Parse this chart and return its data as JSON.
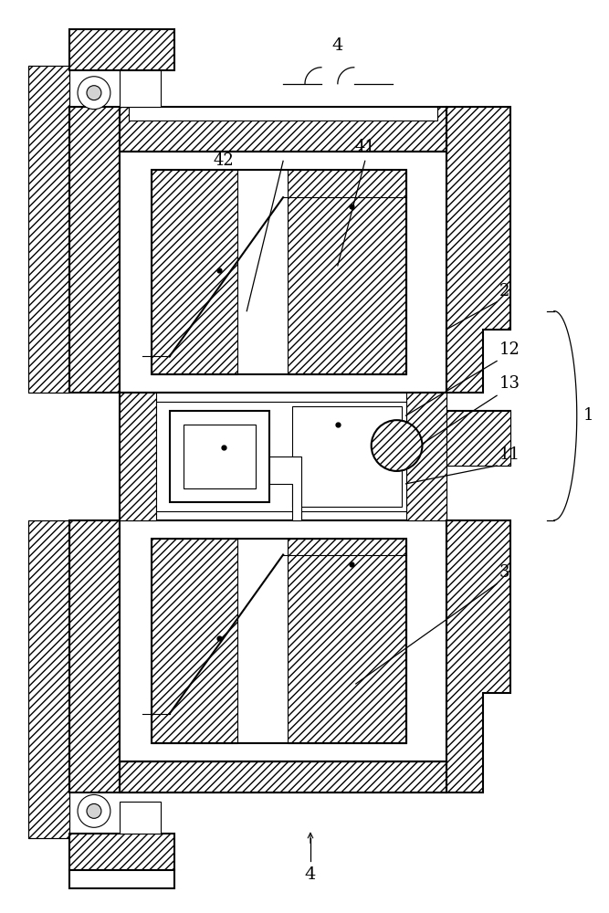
{
  "bg_color": "#ffffff",
  "line_color": "#000000",
  "fs": 13,
  "lw_main": 1.5,
  "lw_thin": 0.8
}
